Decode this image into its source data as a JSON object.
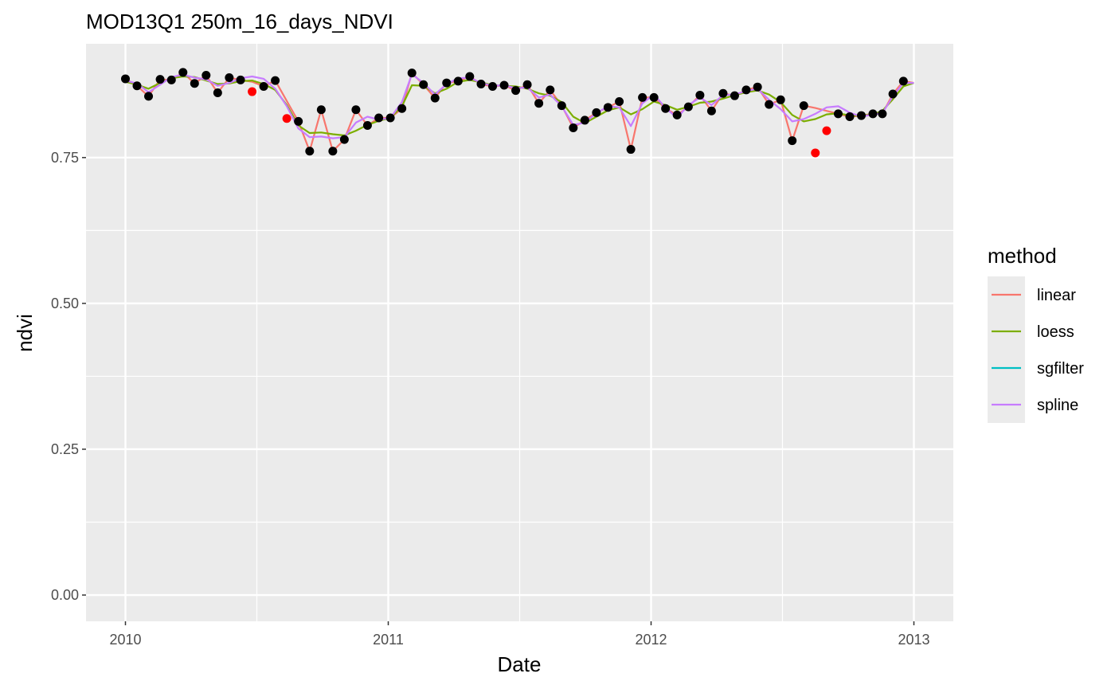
{
  "chart_data": {
    "type": "line",
    "title": "MOD13Q1 250m_16_days_NDVI",
    "xlabel": "Date",
    "ylabel": "ndvi",
    "x_ticks": [
      "2010",
      "2011",
      "2012",
      "2013"
    ],
    "y_ticks": [
      "0.00",
      "0.25",
      "0.50",
      "0.75"
    ],
    "xlim": [
      2009.85,
      2013.15
    ],
    "ylim": [
      -0.045,
      0.945
    ],
    "grid": true,
    "legend": {
      "title": "method",
      "placement": "right",
      "entries": [
        "linear",
        "loess",
        "sgfilter",
        "spline"
      ]
    },
    "points": [
      {
        "x": 2010.0,
        "y": 0.885
      },
      {
        "x": 2010.044,
        "y": 0.873
      },
      {
        "x": 2010.088,
        "y": 0.855
      },
      {
        "x": 2010.132,
        "y": 0.884
      },
      {
        "x": 2010.175,
        "y": 0.883
      },
      {
        "x": 2010.219,
        "y": 0.896
      },
      {
        "x": 2010.263,
        "y": 0.877
      },
      {
        "x": 2010.307,
        "y": 0.891
      },
      {
        "x": 2010.351,
        "y": 0.861
      },
      {
        "x": 2010.395,
        "y": 0.887
      },
      {
        "x": 2010.438,
        "y": 0.883
      },
      {
        "x": 2010.526,
        "y": 0.872
      },
      {
        "x": 2010.57,
        "y": 0.882
      },
      {
        "x": 2010.658,
        "y": 0.812
      },
      {
        "x": 2010.701,
        "y": 0.761
      },
      {
        "x": 2010.745,
        "y": 0.832
      },
      {
        "x": 2010.789,
        "y": 0.761
      },
      {
        "x": 2010.833,
        "y": 0.781
      },
      {
        "x": 2010.877,
        "y": 0.832
      },
      {
        "x": 2010.921,
        "y": 0.805
      },
      {
        "x": 2010.964,
        "y": 0.818
      },
      {
        "x": 2011.008,
        "y": 0.818
      },
      {
        "x": 2011.052,
        "y": 0.834
      },
      {
        "x": 2011.09,
        "y": 0.895
      },
      {
        "x": 2011.134,
        "y": 0.875
      },
      {
        "x": 2011.178,
        "y": 0.852
      },
      {
        "x": 2011.222,
        "y": 0.878
      },
      {
        "x": 2011.266,
        "y": 0.881
      },
      {
        "x": 2011.31,
        "y": 0.889
      },
      {
        "x": 2011.353,
        "y": 0.876
      },
      {
        "x": 2011.397,
        "y": 0.872
      },
      {
        "x": 2011.441,
        "y": 0.874
      },
      {
        "x": 2011.485,
        "y": 0.865
      },
      {
        "x": 2011.529,
        "y": 0.875
      },
      {
        "x": 2011.573,
        "y": 0.843
      },
      {
        "x": 2011.616,
        "y": 0.866
      },
      {
        "x": 2011.66,
        "y": 0.839
      },
      {
        "x": 2011.704,
        "y": 0.801
      },
      {
        "x": 2011.748,
        "y": 0.814
      },
      {
        "x": 2011.792,
        "y": 0.827
      },
      {
        "x": 2011.836,
        "y": 0.836
      },
      {
        "x": 2011.879,
        "y": 0.846
      },
      {
        "x": 2011.923,
        "y": 0.764
      },
      {
        "x": 2011.967,
        "y": 0.853
      },
      {
        "x": 2012.011,
        "y": 0.853
      },
      {
        "x": 2012.055,
        "y": 0.834
      },
      {
        "x": 2012.099,
        "y": 0.823
      },
      {
        "x": 2012.142,
        "y": 0.837
      },
      {
        "x": 2012.186,
        "y": 0.857
      },
      {
        "x": 2012.23,
        "y": 0.83
      },
      {
        "x": 2012.274,
        "y": 0.86
      },
      {
        "x": 2012.318,
        "y": 0.856
      },
      {
        "x": 2012.362,
        "y": 0.866
      },
      {
        "x": 2012.405,
        "y": 0.871
      },
      {
        "x": 2012.449,
        "y": 0.841
      },
      {
        "x": 2012.493,
        "y": 0.849
      },
      {
        "x": 2012.537,
        "y": 0.779
      },
      {
        "x": 2012.581,
        "y": 0.839
      },
      {
        "x": 2012.712,
        "y": 0.825
      },
      {
        "x": 2012.756,
        "y": 0.82
      },
      {
        "x": 2012.8,
        "y": 0.822
      },
      {
        "x": 2012.844,
        "y": 0.825
      },
      {
        "x": 2012.88,
        "y": 0.825
      },
      {
        "x": 2012.92,
        "y": 0.859
      },
      {
        "x": 2012.96,
        "y": 0.881
      }
    ],
    "outliers": [
      {
        "x": 2010.482,
        "y": 0.863
      },
      {
        "x": 2010.614,
        "y": 0.817
      },
      {
        "x": 2012.625,
        "y": 0.758
      },
      {
        "x": 2012.668,
        "y": 0.796
      }
    ],
    "series": [
      {
        "name": "linear",
        "color": "#F8766D",
        "x": [
          2010.0,
          2010.044,
          2010.088,
          2010.132,
          2010.175,
          2010.219,
          2010.263,
          2010.307,
          2010.351,
          2010.395,
          2010.438,
          2010.482,
          2010.526,
          2010.57,
          2010.614,
          2010.658,
          2010.701,
          2010.745,
          2010.789,
          2010.833,
          2010.877,
          2010.921,
          2010.964,
          2011.008,
          2011.052,
          2011.09,
          2011.134,
          2011.178,
          2011.222,
          2011.266,
          2011.31,
          2011.353,
          2011.397,
          2011.441,
          2011.485,
          2011.529,
          2011.573,
          2011.616,
          2011.66,
          2011.704,
          2011.748,
          2011.792,
          2011.836,
          2011.879,
          2011.923,
          2011.967,
          2012.011,
          2012.055,
          2012.099,
          2012.142,
          2012.186,
          2012.23,
          2012.274,
          2012.318,
          2012.362,
          2012.405,
          2012.449,
          2012.493,
          2012.537,
          2012.581,
          2012.625,
          2012.668,
          2012.712,
          2012.756,
          2012.8,
          2012.844,
          2012.88,
          2012.92,
          2012.96,
          2013.0
        ],
        "values": [
          0.885,
          0.873,
          0.855,
          0.884,
          0.883,
          0.896,
          0.877,
          0.891,
          0.861,
          0.887,
          0.883,
          0.88,
          0.872,
          0.882,
          0.847,
          0.812,
          0.761,
          0.832,
          0.761,
          0.781,
          0.832,
          0.805,
          0.818,
          0.818,
          0.834,
          0.895,
          0.875,
          0.852,
          0.878,
          0.881,
          0.889,
          0.876,
          0.872,
          0.874,
          0.865,
          0.875,
          0.843,
          0.866,
          0.839,
          0.801,
          0.814,
          0.827,
          0.836,
          0.846,
          0.764,
          0.853,
          0.853,
          0.834,
          0.823,
          0.837,
          0.857,
          0.83,
          0.86,
          0.856,
          0.866,
          0.871,
          0.841,
          0.849,
          0.779,
          0.839,
          0.835,
          0.83,
          0.825,
          0.82,
          0.822,
          0.825,
          0.825,
          0.859,
          0.881,
          0.878
        ]
      },
      {
        "name": "loess",
        "color": "#7CAE00",
        "x": [
          2010.0,
          2010.044,
          2010.088,
          2010.132,
          2010.175,
          2010.219,
          2010.263,
          2010.307,
          2010.351,
          2010.395,
          2010.438,
          2010.482,
          2010.526,
          2010.57,
          2010.614,
          2010.658,
          2010.701,
          2010.745,
          2010.789,
          2010.833,
          2010.877,
          2010.921,
          2010.964,
          2011.008,
          2011.052,
          2011.09,
          2011.134,
          2011.178,
          2011.222,
          2011.266,
          2011.31,
          2011.353,
          2011.397,
          2011.441,
          2011.485,
          2011.529,
          2011.573,
          2011.616,
          2011.66,
          2011.704,
          2011.748,
          2011.792,
          2011.836,
          2011.879,
          2011.923,
          2011.967,
          2012.011,
          2012.055,
          2012.099,
          2012.142,
          2012.186,
          2012.23,
          2012.274,
          2012.318,
          2012.362,
          2012.405,
          2012.449,
          2012.493,
          2012.537,
          2012.581,
          2012.625,
          2012.668,
          2012.712,
          2012.756,
          2012.8,
          2012.844,
          2012.88,
          2012.92,
          2012.96,
          2013.0
        ],
        "values": [
          0.88,
          0.875,
          0.868,
          0.878,
          0.886,
          0.889,
          0.888,
          0.882,
          0.876,
          0.877,
          0.881,
          0.882,
          0.876,
          0.866,
          0.84,
          0.805,
          0.792,
          0.793,
          0.79,
          0.788,
          0.796,
          0.806,
          0.813,
          0.818,
          0.838,
          0.874,
          0.873,
          0.86,
          0.868,
          0.88,
          0.883,
          0.879,
          0.874,
          0.873,
          0.872,
          0.868,
          0.86,
          0.856,
          0.845,
          0.82,
          0.809,
          0.82,
          0.831,
          0.836,
          0.824,
          0.833,
          0.846,
          0.84,
          0.832,
          0.837,
          0.844,
          0.846,
          0.851,
          0.857,
          0.862,
          0.865,
          0.858,
          0.845,
          0.823,
          0.812,
          0.816,
          0.824,
          0.826,
          0.822,
          0.822,
          0.824,
          0.83,
          0.85,
          0.872,
          0.878
        ]
      },
      {
        "name": "sgfilter",
        "color": "#00BFC4",
        "x": [],
        "values": []
      },
      {
        "name": "spline",
        "color": "#C77CFF",
        "x": [
          2010.0,
          2010.044,
          2010.088,
          2010.132,
          2010.175,
          2010.219,
          2010.263,
          2010.307,
          2010.351,
          2010.395,
          2010.438,
          2010.482,
          2010.526,
          2010.57,
          2010.614,
          2010.658,
          2010.701,
          2010.745,
          2010.789,
          2010.833,
          2010.877,
          2010.921,
          2010.964,
          2011.008,
          2011.052,
          2011.09,
          2011.134,
          2011.178,
          2011.222,
          2011.266,
          2011.31,
          2011.353,
          2011.397,
          2011.441,
          2011.485,
          2011.529,
          2011.573,
          2011.616,
          2011.66,
          2011.704,
          2011.748,
          2011.792,
          2011.836,
          2011.879,
          2011.923,
          2011.967,
          2012.011,
          2012.055,
          2012.099,
          2012.142,
          2012.186,
          2012.23,
          2012.274,
          2012.318,
          2012.362,
          2012.405,
          2012.449,
          2012.493,
          2012.537,
          2012.581,
          2012.625,
          2012.668,
          2012.712,
          2012.756,
          2012.8,
          2012.844,
          2012.88,
          2012.92,
          2012.96,
          2013.0
        ],
        "values": [
          0.882,
          0.877,
          0.862,
          0.875,
          0.888,
          0.892,
          0.887,
          0.884,
          0.873,
          0.878,
          0.886,
          0.889,
          0.885,
          0.868,
          0.838,
          0.8,
          0.785,
          0.786,
          0.783,
          0.785,
          0.81,
          0.82,
          0.815,
          0.818,
          0.845,
          0.893,
          0.878,
          0.858,
          0.876,
          0.886,
          0.887,
          0.878,
          0.873,
          0.874,
          0.869,
          0.87,
          0.853,
          0.858,
          0.838,
          0.806,
          0.81,
          0.826,
          0.838,
          0.836,
          0.804,
          0.843,
          0.858,
          0.835,
          0.818,
          0.84,
          0.853,
          0.84,
          0.857,
          0.858,
          0.864,
          0.868,
          0.849,
          0.833,
          0.812,
          0.816,
          0.825,
          0.836,
          0.838,
          0.827,
          0.82,
          0.824,
          0.826,
          0.855,
          0.878,
          0.878
        ]
      }
    ]
  }
}
